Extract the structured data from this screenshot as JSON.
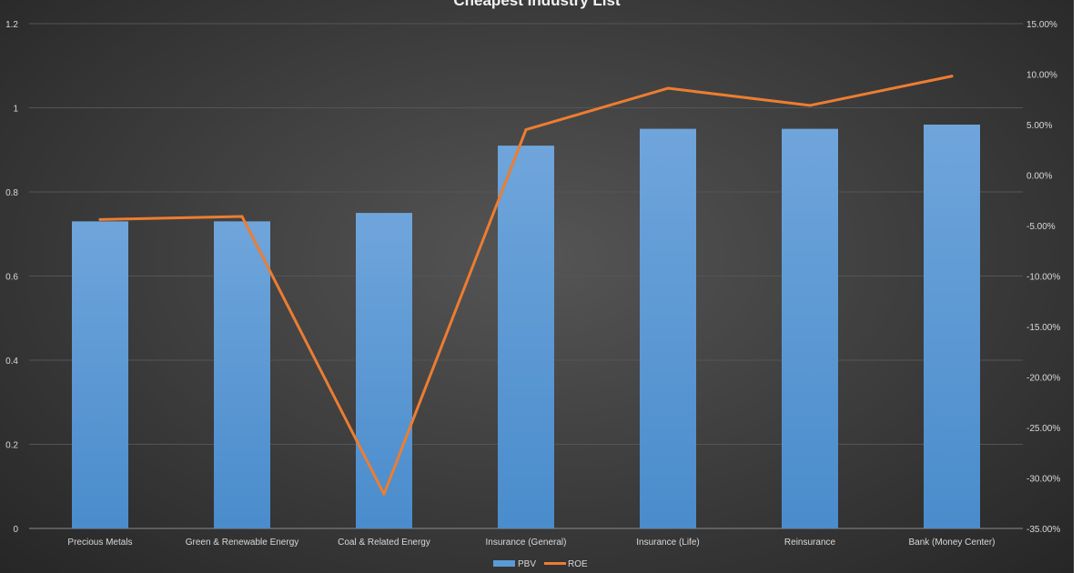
{
  "chart_data": {
    "type": "bar+line",
    "title": "Cheapest  Industry  List",
    "categories": [
      "Precious Metals",
      "Green & Renewable Energy",
      "Coal & Related Energy",
      "Insurance (General)",
      "Insurance (Life)",
      "Reinsurance",
      "Bank (Money Center)"
    ],
    "series": [
      {
        "name": "PBV",
        "type": "bar",
        "axis": "left",
        "color": "#5b9bd5",
        "values": [
          0.73,
          0.73,
          0.75,
          0.91,
          0.95,
          0.95,
          0.96
        ]
      },
      {
        "name": "ROE",
        "type": "line",
        "axis": "right",
        "color": "#ed7d31",
        "values": [
          -4.4,
          -4.1,
          -31.6,
          4.5,
          8.6,
          6.9,
          9.8
        ]
      }
    ],
    "left_axis": {
      "ylim": [
        0,
        1.2
      ],
      "ticks": [
        "0",
        "0.2",
        "0.4",
        "0.6",
        "0.8",
        "1",
        "1.2"
      ]
    },
    "right_axis": {
      "ylim": [
        -35,
        15
      ],
      "unit": "%",
      "ticks": [
        "-35.00%",
        "-30.00%",
        "-25.00%",
        "-20.00%",
        "-15.00%",
        "-10.00%",
        "-5.00%",
        "0.00%",
        "5.00%",
        "10.00%",
        "15.00%"
      ]
    },
    "grid": true,
    "legend": "bottom"
  }
}
